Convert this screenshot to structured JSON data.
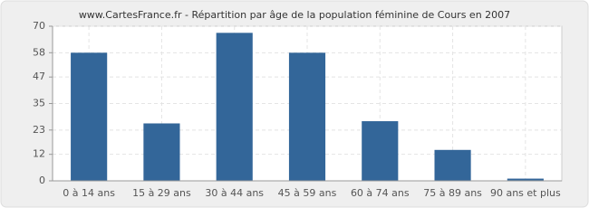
{
  "chart_data": {
    "type": "bar",
    "title": "www.CartesFrance.fr - Répartition par âge de la population féminine de Cours en 2007",
    "categories": [
      "0 à 14 ans",
      "15 à 29 ans",
      "30 à 44 ans",
      "45 à 59 ans",
      "60 à 74 ans",
      "75 à 89 ans",
      "90 ans et plus"
    ],
    "values": [
      58,
      26,
      67,
      58,
      27,
      14,
      1
    ],
    "color": "#336699",
    "ylim": [
      0,
      70
    ],
    "yticks": [
      0,
      12,
      23,
      35,
      47,
      58,
      70
    ],
    "grid": true
  }
}
